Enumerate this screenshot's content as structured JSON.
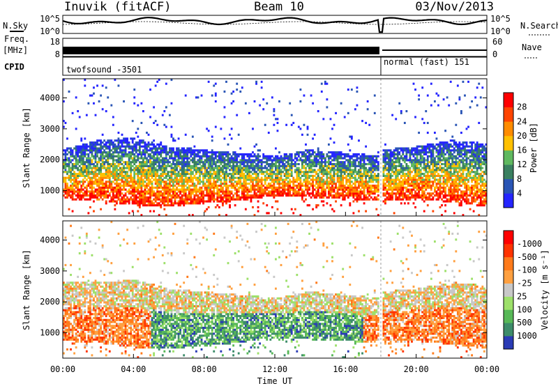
{
  "header": {
    "station": "Inuvik (fitACF)",
    "beam": "Beam 10",
    "date": "03/Nov/2013"
  },
  "top_panels": {
    "nsky_label": "N.Sky",
    "nsearch_label": "N.Search",
    "nsky_ticks": [
      "10^5",
      "10^0"
    ],
    "nsearch_ticks": [
      "10^5",
      "10^0"
    ],
    "freq_label": "Freq.",
    "freq_unit": "[MHz]",
    "freq_ticks": [
      "18",
      "8"
    ],
    "nave_label": "Nave",
    "nave_ticks": [
      "60",
      "0"
    ],
    "cpid_label": "CPID",
    "cpid_modes": [
      {
        "name": "twofsound",
        "id": "-3501",
        "start": "00:00",
        "end": "18:00"
      },
      {
        "name": "normal (fast)",
        "id": "151",
        "start": "18:00",
        "end": "24:00"
      }
    ]
  },
  "chart_data": [
    {
      "type": "heatmap",
      "title": "",
      "xlabel": "Time UT",
      "ylabel": "Slant Range [km]",
      "x_range_hours": [
        0,
        24
      ],
      "x_ticks": [
        "00:00",
        "04:00",
        "08:00",
        "12:00",
        "16:00",
        "20:00",
        "00:00"
      ],
      "ylim": [
        180,
        4620
      ],
      "y_ticks": [
        1000,
        2000,
        3000,
        4000
      ],
      "colorbar": {
        "label": "Power [dB]",
        "tick_labels": [
          "4",
          "8",
          "12",
          "16",
          "20",
          "24",
          "28"
        ],
        "colors": [
          "#2525ff",
          "#2a55b5",
          "#3a8060",
          "#5fb85f",
          "#ffc000",
          "#ff8c00",
          "#ff4400",
          "#ff0000"
        ]
      },
      "scatter_band_km": {
        "hours": [
          0,
          2,
          4,
          6,
          8,
          10,
          12,
          14,
          16,
          18,
          18.1,
          20,
          22,
          24
        ],
        "lower": [
          700,
          650,
          500,
          450,
          550,
          650,
          800,
          750,
          700,
          650,
          600,
          700,
          600,
          450
        ],
        "upper": [
          2300,
          2600,
          2700,
          2400,
          2300,
          2200,
          2100,
          2300,
          2200,
          2100,
          2300,
          2400,
          2600,
          2500
        ]
      }
    },
    {
      "type": "heatmap",
      "title": "",
      "xlabel": "Time UT",
      "ylabel": "Slant Range [km]",
      "x_range_hours": [
        0,
        24
      ],
      "x_ticks": [
        "00:00",
        "04:00",
        "08:00",
        "12:00",
        "16:00",
        "20:00",
        "00:00"
      ],
      "ylim": [
        180,
        4620
      ],
      "y_ticks": [
        1000,
        2000,
        3000,
        4000
      ],
      "colorbar": {
        "label": "Velocity [m s⁻¹]",
        "tick_labels": [
          "1000",
          "500",
          "100",
          "25",
          "-25",
          "-100",
          "-500",
          "-1000"
        ],
        "colors": [
          "#2a3bb5",
          "#3d8c6a",
          "#57b857",
          "#9de06a",
          "#c8c8c8",
          "#ffa040",
          "#ff7a1a",
          "#ff3300",
          "#ff0000"
        ]
      },
      "scatter_band_km": {
        "hours": [
          0,
          2,
          4,
          6,
          8,
          10,
          12,
          14,
          16,
          18,
          18.1,
          20,
          22,
          24
        ],
        "lower": [
          700,
          650,
          500,
          450,
          550,
          650,
          800,
          750,
          700,
          650,
          600,
          700,
          600,
          450
        ],
        "upper": [
          2600,
          2600,
          2700,
          2400,
          2300,
          2200,
          2100,
          2300,
          2200,
          2100,
          2300,
          2400,
          2600,
          2500
        ]
      }
    }
  ]
}
